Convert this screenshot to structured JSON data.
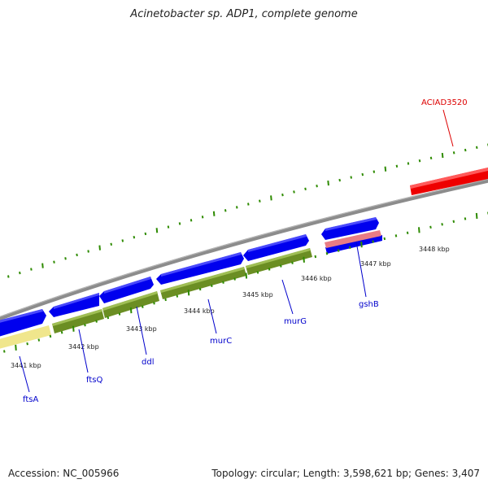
{
  "title": "Acinetobacter sp. ADP1, complete genome",
  "footer": {
    "accession": "Accession: NC_005966",
    "summary": "Topology: circular; Length: 3,598,621 bp; Genes: 3,407"
  },
  "tick_labels": [
    "3441 kbp",
    "3442 kbp",
    "3443 kbp",
    "3444 kbp",
    "3445 kbp",
    "3446 kbp",
    "3447 kbp",
    "3448 kbp"
  ],
  "genes": [
    {
      "name": "ftsA",
      "color": "#0000cc"
    },
    {
      "name": "ftsQ",
      "color": "#0000cc"
    },
    {
      "name": "ddl",
      "color": "#0000cc"
    },
    {
      "name": "murC",
      "color": "#0000cc"
    },
    {
      "name": "murG",
      "color": "#0000cc"
    },
    {
      "name": "gshB",
      "color": "#0000cc"
    },
    {
      "name": "ACIAD3520",
      "color": "#dd0000"
    }
  ],
  "colors": {
    "backbone": "#888888",
    "cds_blue": "#0000ee",
    "olive": "#6b8e23",
    "pale_yellow": "#f0e68c",
    "red": "#ee0000",
    "pink": "#e87c85",
    "tick_green": "#2e8b00"
  }
}
